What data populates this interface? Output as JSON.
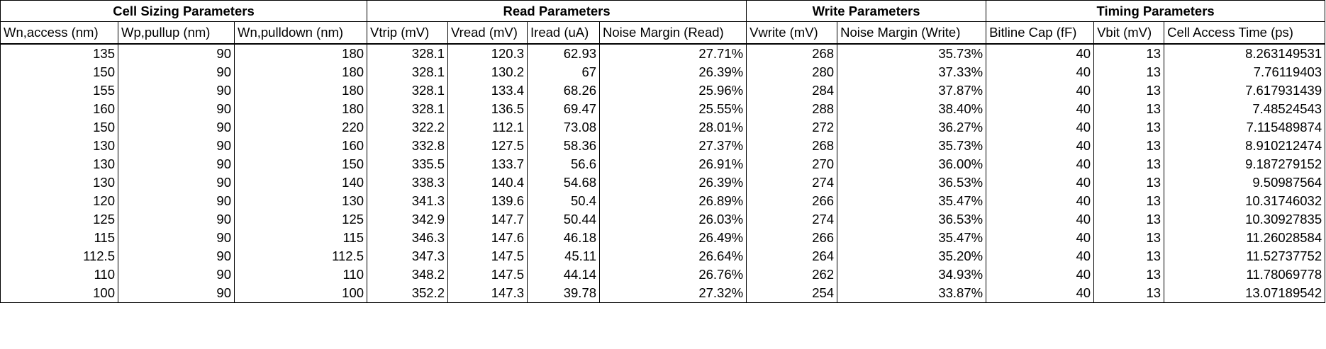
{
  "groups": [
    {
      "label": "Cell Sizing Parameters",
      "span": 3
    },
    {
      "label": "Read Parameters",
      "span": 4
    },
    {
      "label": "Write Parameters",
      "span": 2
    },
    {
      "label": "Timing Parameters",
      "span": 3
    }
  ],
  "columns": [
    "Wn,access (nm)",
    "Wp,pullup (nm)",
    "Wn,pulldown (nm)",
    "Vtrip (mV)",
    "Vread (mV)",
    "Iread (uA)",
    "Noise Margin (Read)",
    "Vwrite (mV)",
    "Noise Margin (Write)",
    "Bitline Cap (fF)",
    "Vbit (mV)",
    "Cell Access Time (ps)"
  ],
  "rows": [
    [
      "135",
      "90",
      "180",
      "328.1",
      "120.3",
      "62.93",
      "27.71%",
      "268",
      "35.73%",
      "40",
      "13",
      "8.263149531"
    ],
    [
      "150",
      "90",
      "180",
      "328.1",
      "130.2",
      "67",
      "26.39%",
      "280",
      "37.33%",
      "40",
      "13",
      "7.76119403"
    ],
    [
      "155",
      "90",
      "180",
      "328.1",
      "133.4",
      "68.26",
      "25.96%",
      "284",
      "37.87%",
      "40",
      "13",
      "7.617931439"
    ],
    [
      "160",
      "90",
      "180",
      "328.1",
      "136.5",
      "69.47",
      "25.55%",
      "288",
      "38.40%",
      "40",
      "13",
      "7.48524543"
    ],
    [
      "150",
      "90",
      "220",
      "322.2",
      "112.1",
      "73.08",
      "28.01%",
      "272",
      "36.27%",
      "40",
      "13",
      "7.115489874"
    ],
    [
      "130",
      "90",
      "160",
      "332.8",
      "127.5",
      "58.36",
      "27.37%",
      "268",
      "35.73%",
      "40",
      "13",
      "8.910212474"
    ],
    [
      "130",
      "90",
      "150",
      "335.5",
      "133.7",
      "56.6",
      "26.91%",
      "270",
      "36.00%",
      "40",
      "13",
      "9.187279152"
    ],
    [
      "130",
      "90",
      "140",
      "338.3",
      "140.4",
      "54.68",
      "26.39%",
      "274",
      "36.53%",
      "40",
      "13",
      "9.50987564"
    ],
    [
      "120",
      "90",
      "130",
      "341.3",
      "139.6",
      "50.4",
      "26.89%",
      "266",
      "35.47%",
      "40",
      "13",
      "10.31746032"
    ],
    [
      "125",
      "90",
      "125",
      "342.9",
      "147.7",
      "50.44",
      "26.03%",
      "274",
      "36.53%",
      "40",
      "13",
      "10.30927835"
    ],
    [
      "115",
      "90",
      "115",
      "346.3",
      "147.6",
      "46.18",
      "26.49%",
      "266",
      "35.47%",
      "40",
      "13",
      "11.26028584"
    ],
    [
      "112.5",
      "90",
      "112.5",
      "347.3",
      "147.5",
      "45.11",
      "26.64%",
      "264",
      "35.20%",
      "40",
      "13",
      "11.52737752"
    ],
    [
      "110",
      "90",
      "110",
      "348.2",
      "147.5",
      "44.14",
      "26.76%",
      "262",
      "34.93%",
      "40",
      "13",
      "11.78069778"
    ],
    [
      "100",
      "90",
      "100",
      "352.2",
      "147.3",
      "39.78",
      "27.32%",
      "254",
      "33.87%",
      "40",
      "13",
      "13.07189542"
    ]
  ]
}
